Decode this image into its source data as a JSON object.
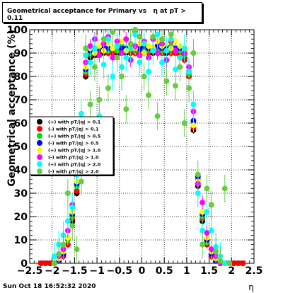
{
  "header": {
    "title": "Geometrical acceptance for Primary vs   η at pT > 0.11"
  },
  "footer": {
    "timestamp": "Sun Oct 18 16:52:32 2020"
  },
  "chart_data": {
    "type": "scatter",
    "title": "Geometrical acceptance for Primary vs   η at pT > 0.11",
    "xlabel": "η",
    "ylabel": "Geometrical acceptance (%)",
    "xlim": [
      -2.5,
      2.5
    ],
    "ylim": [
      0,
      100
    ],
    "grid": true,
    "legend_position": "left-middle",
    "x_tick_labels": [
      "−2.5",
      "−2",
      "−1.5",
      "−1",
      "−0.5",
      "0",
      "0.5",
      "1",
      "1.5",
      "2",
      "2.5"
    ],
    "y_tick_labels": [
      "0",
      "10",
      "20",
      "30",
      "40",
      "50",
      "60",
      "70",
      "80",
      "90",
      "100"
    ],
    "series": [
      {
        "name": "(+) with pT/|q| > 0.1",
        "color": "#000000",
        "x": [
          -2.25,
          -2.15,
          -2.05,
          -1.95,
          -1.85,
          -1.75,
          -1.65,
          -1.55,
          -1.45,
          -1.35,
          -1.25,
          -1.15,
          -1.05,
          -0.95,
          -0.85,
          -0.75,
          -0.65,
          -0.55,
          -0.45,
          -0.35,
          -0.25,
          -0.15,
          -0.05,
          0.05,
          0.15,
          0.25,
          0.35,
          0.45,
          0.55,
          0.65,
          0.75,
          0.85,
          0.95,
          1.05,
          1.15,
          1.25,
          1.35,
          1.45,
          1.55,
          1.65,
          1.75,
          1.85,
          1.95,
          2.05,
          2.15,
          2.25
        ],
        "y": [
          0,
          0,
          0,
          0,
          1,
          3,
          8,
          18,
          30,
          55,
          80,
          88,
          89,
          90,
          90,
          90,
          90,
          90,
          90,
          90,
          90,
          90,
          90,
          90,
          90,
          90,
          90,
          90,
          90,
          90,
          90,
          90,
          88,
          80,
          57,
          33,
          18,
          8,
          3,
          1,
          0,
          0,
          0,
          0,
          0,
          0
        ]
      },
      {
        "name": "(-) with pT/|q| > 0.1",
        "color": "#ff0000",
        "x": [
          -2.25,
          -2.15,
          -2.05,
          -1.95,
          -1.85,
          -1.75,
          -1.65,
          -1.55,
          -1.45,
          -1.35,
          -1.25,
          -1.15,
          -1.05,
          -0.95,
          -0.85,
          -0.75,
          -0.65,
          -0.55,
          -0.45,
          -0.35,
          -0.25,
          -0.15,
          -0.05,
          0.05,
          0.15,
          0.25,
          0.35,
          0.45,
          0.55,
          0.65,
          0.75,
          0.85,
          0.95,
          1.05,
          1.15,
          1.25,
          1.35,
          1.45,
          1.55,
          1.65,
          1.75,
          1.85,
          1.95,
          2.05,
          2.15,
          2.25
        ],
        "y": [
          0,
          0,
          0,
          0,
          1,
          3,
          8,
          19,
          31,
          56,
          81,
          89,
          90,
          91,
          91,
          90,
          90,
          91,
          90,
          91,
          90,
          90,
          91,
          90,
          90,
          91,
          90,
          90,
          91,
          90,
          90,
          89,
          87,
          80,
          58,
          34,
          19,
          8,
          3,
          1,
          0,
          0,
          0,
          0,
          0,
          0
        ]
      },
      {
        "name": "(+) with pT/|q| > 0.5",
        "color": "#00e000",
        "x": [
          -1.95,
          -1.85,
          -1.75,
          -1.65,
          -1.55,
          -1.45,
          -1.35,
          -1.25,
          -1.15,
          -1.05,
          -0.95,
          -0.85,
          -0.75,
          -0.65,
          -0.55,
          -0.45,
          -0.35,
          -0.25,
          -0.15,
          -0.05,
          0.05,
          0.15,
          0.25,
          0.35,
          0.45,
          0.55,
          0.65,
          0.75,
          0.85,
          0.95,
          1.05,
          1.15,
          1.25,
          1.35,
          1.45,
          1.55,
          1.65,
          1.75,
          1.85,
          1.95
        ],
        "y": [
          0,
          1,
          4,
          10,
          20,
          33,
          57,
          82,
          90,
          91,
          92,
          92,
          91,
          92,
          91,
          93,
          92,
          92,
          91,
          92,
          92,
          91,
          92,
          92,
          91,
          92,
          93,
          92,
          91,
          89,
          81,
          60,
          36,
          20,
          9,
          4,
          1,
          0,
          0,
          0
        ]
      },
      {
        "name": "(-) with pT/|q| > 0.5",
        "color": "#0000ff",
        "x": [
          -1.95,
          -1.85,
          -1.75,
          -1.65,
          -1.55,
          -1.45,
          -1.35,
          -1.25,
          -1.15,
          -1.05,
          -0.95,
          -0.85,
          -0.75,
          -0.65,
          -0.55,
          -0.45,
          -0.35,
          -0.25,
          -0.15,
          -0.05,
          0.05,
          0.15,
          0.25,
          0.35,
          0.45,
          0.55,
          0.65,
          0.75,
          0.85,
          0.95,
          1.05,
          1.15,
          1.25,
          1.35,
          1.45,
          1.55,
          1.65,
          1.75,
          1.85,
          1.95
        ],
        "y": [
          0,
          1,
          4,
          11,
          21,
          34,
          58,
          83,
          91,
          92,
          92,
          93,
          92,
          92,
          93,
          92,
          92,
          93,
          92,
          92,
          93,
          92,
          92,
          93,
          92,
          93,
          92,
          92,
          92,
          90,
          82,
          61,
          37,
          21,
          10,
          4,
          1,
          0,
          0,
          0
        ]
      },
      {
        "name": "(+) with pT/|q| > 1.0",
        "color": "#ffff00",
        "x": [
          -1.95,
          -1.85,
          -1.75,
          -1.65,
          -1.55,
          -1.45,
          -1.35,
          -1.25,
          -1.15,
          -1.05,
          -0.95,
          -0.85,
          -0.75,
          -0.65,
          -0.55,
          -0.45,
          -0.35,
          -0.25,
          -0.15,
          -0.05,
          0.05,
          0.15,
          0.25,
          0.35,
          0.45,
          0.55,
          0.65,
          0.75,
          0.85,
          0.95,
          1.05,
          1.15,
          1.25,
          1.35,
          1.45,
          1.55,
          1.65,
          1.75,
          1.85,
          1.95
        ],
        "y": [
          0,
          2,
          5,
          11,
          22,
          35,
          56,
          84,
          92,
          90,
          93,
          91,
          94,
          92,
          93,
          95,
          91,
          93,
          92,
          94,
          90,
          93,
          92,
          95,
          93,
          94,
          92,
          95,
          93,
          91,
          84,
          59,
          35,
          22,
          11,
          5,
          2,
          0,
          0,
          0
        ]
      },
      {
        "name": "(-) with pT/|q| > 1.0",
        "color": "#ff00ff",
        "x": [
          -1.95,
          -1.85,
          -1.75,
          -1.65,
          -1.55,
          -1.45,
          -1.35,
          -1.25,
          -1.15,
          -1.05,
          -0.95,
          -0.85,
          -0.75,
          -0.65,
          -0.55,
          -0.45,
          -0.35,
          -0.25,
          -0.15,
          -0.05,
          0.05,
          0.15,
          0.25,
          0.35,
          0.45,
          0.55,
          0.65,
          0.75,
          0.85,
          0.95,
          1.05,
          1.15,
          1.25,
          1.35,
          1.45,
          1.55,
          1.65,
          1.75,
          1.85,
          1.95
        ],
        "y": [
          0,
          3,
          6,
          14,
          25,
          38,
          60,
          86,
          93,
          96,
          89,
          94,
          97,
          88,
          95,
          90,
          96,
          87,
          93,
          89,
          95,
          88,
          96,
          90,
          94,
          87,
          95,
          91,
          88,
          90,
          84,
          65,
          34,
          26,
          13,
          6,
          3,
          0,
          0,
          0
        ]
      },
      {
        "name": "(+) with pT/|q| > 2.0",
        "color": "#00ffff",
        "x": [
          -1.95,
          -1.85,
          -1.75,
          -1.65,
          -1.55,
          -1.45,
          -1.35,
          -1.25,
          -1.15,
          -1.05,
          -0.95,
          -0.85,
          -0.75,
          -0.65,
          -0.55,
          -0.45,
          -0.35,
          -0.25,
          -0.15,
          -0.05,
          0.05,
          0.15,
          0.25,
          0.35,
          0.45,
          0.55,
          0.65,
          0.75,
          0.85,
          0.95,
          1.05,
          1.15,
          1.25,
          1.35,
          1.45,
          1.55,
          1.65,
          1.75,
          1.85,
          1.95
        ],
        "y": [
          3,
          8,
          12,
          18,
          24,
          38,
          64,
          89,
          86,
          92,
          63,
          85,
          96,
          80,
          93,
          84,
          88,
          92,
          98,
          86,
          94,
          82,
          91,
          98,
          86,
          91,
          96,
          83,
          88,
          92,
          82,
          68,
          30,
          14,
          22,
          14,
          7,
          3,
          0,
          0
        ]
      },
      {
        "name": "(-) with pT/|q| > 2.0",
        "color": "#66cc44",
        "x": [
          -1.95,
          -1.85,
          -1.75,
          -1.65,
          -1.55,
          -1.45,
          -1.35,
          -1.25,
          -1.15,
          -1.05,
          -0.95,
          -0.85,
          -0.75,
          -0.65,
          -0.55,
          -0.45,
          -0.35,
          -0.25,
          -0.15,
          -0.05,
          0.05,
          0.15,
          0.25,
          0.35,
          0.45,
          0.55,
          0.65,
          0.75,
          0.85,
          0.95,
          1.05,
          1.15,
          1.25,
          1.35,
          1.45,
          1.55,
          1.65,
          1.75,
          1.85,
          1.95
        ],
        "y": [
          0,
          4,
          8,
          30,
          16,
          6,
          35,
          92,
          68,
          84,
          70,
          96,
          75,
          99,
          88,
          80,
          66,
          94,
          100,
          97,
          80,
          72,
          97,
          63,
          96,
          78,
          98,
          76,
          84,
          60,
          75,
          90,
          38,
          8,
          32,
          25,
          5,
          1,
          32,
          0
        ]
      }
    ]
  }
}
